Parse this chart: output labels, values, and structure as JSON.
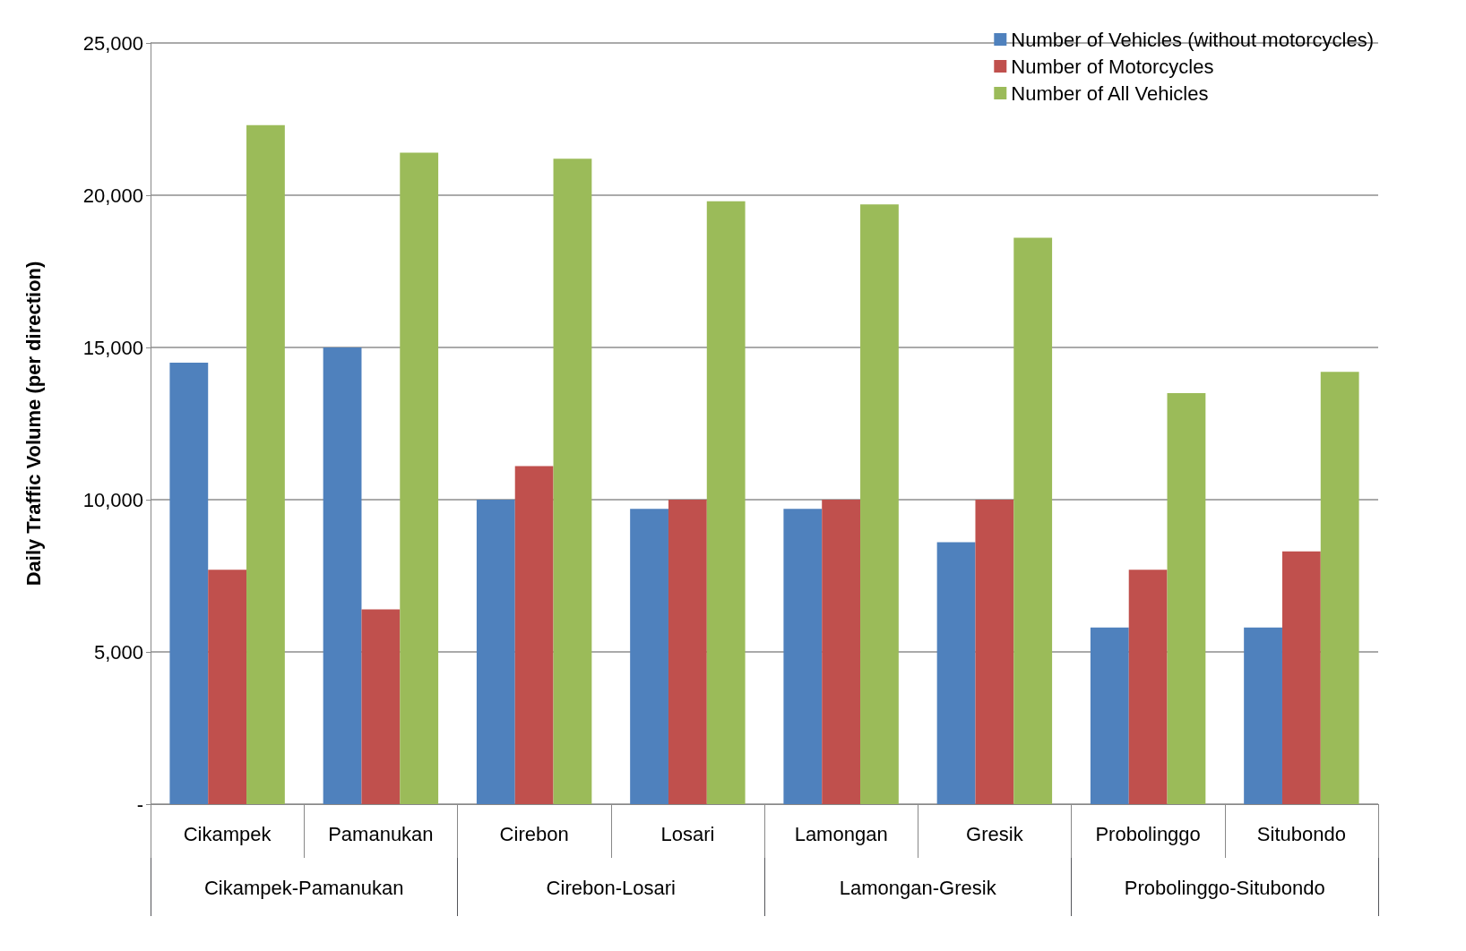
{
  "chart_data": {
    "type": "bar",
    "ylabel": "Daily Traffic Volume (per direction)",
    "categories": [
      "Cikampek",
      "Pamanukan",
      "Cirebon",
      "Losari",
      "Lamongan",
      "Gresik",
      "Probolinggo",
      "Situbondo"
    ],
    "series": [
      {
        "name": "Number of Vehicles (without motorcycles)",
        "color": "#4f81bd",
        "values": [
          14500,
          15000,
          10000,
          9700,
          9700,
          8600,
          5800,
          5800
        ]
      },
      {
        "name": "Number of Motorcycles",
        "color": "#c0504d",
        "values": [
          7700,
          6400,
          11100,
          10000,
          10000,
          10000,
          7700,
          8300
        ]
      },
      {
        "name": "Number of All Vehicles",
        "color": "#9bbb59",
        "values": [
          22300,
          21400,
          21200,
          19800,
          19700,
          18600,
          13500,
          14200
        ]
      }
    ],
    "ylim": [
      0,
      25000
    ],
    "yticks": [
      {
        "value": 0,
        "label": "-"
      },
      {
        "value": 5000,
        "label": "5,000"
      },
      {
        "value": 10000,
        "label": "10,000"
      },
      {
        "value": 15000,
        "label": "15,000"
      },
      {
        "value": 20000,
        "label": "20,000"
      },
      {
        "value": 25000,
        "label": "25,000"
      }
    ],
    "grid": "y",
    "legend": "top right",
    "annotations": [
      "Cikampek-Pamanukan",
      "Cirebon-Losari",
      "Lamongan-Gresik",
      "Probolinggo-Situbondo"
    ]
  }
}
